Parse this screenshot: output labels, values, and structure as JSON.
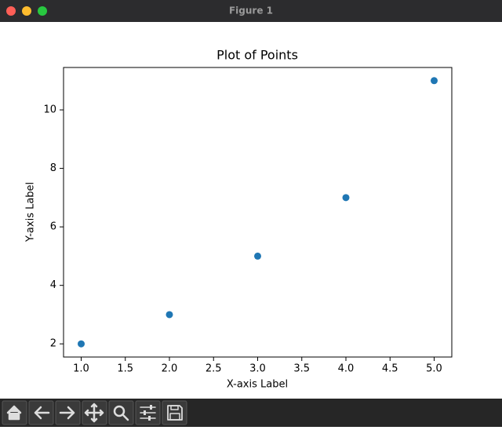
{
  "window": {
    "title": "Figure 1"
  },
  "chart_data": {
    "type": "scatter",
    "title": "Plot of Points",
    "x_label": "X-axis Label",
    "y_label": "Y-axis Label",
    "x": [
      1,
      2,
      3,
      4,
      5
    ],
    "values": [
      2,
      3,
      5,
      7,
      11
    ],
    "color": "#1f77b4",
    "xlim": [
      0.8,
      5.2
    ],
    "ylim": [
      1.55,
      11.45
    ],
    "xticks": [
      {
        "value": 1,
        "label": "1.0"
      },
      1.5,
      {
        "value": 2,
        "label": "2.0"
      },
      2.5,
      {
        "value": 3,
        "label": "3.0"
      },
      3.5,
      {
        "value": 4,
        "label": "4.0"
      },
      4.5,
      {
        "value": 5,
        "label": "5.0"
      }
    ],
    "yticks": [
      2,
      4,
      6,
      8,
      10
    ],
    "grid": false
  }
}
